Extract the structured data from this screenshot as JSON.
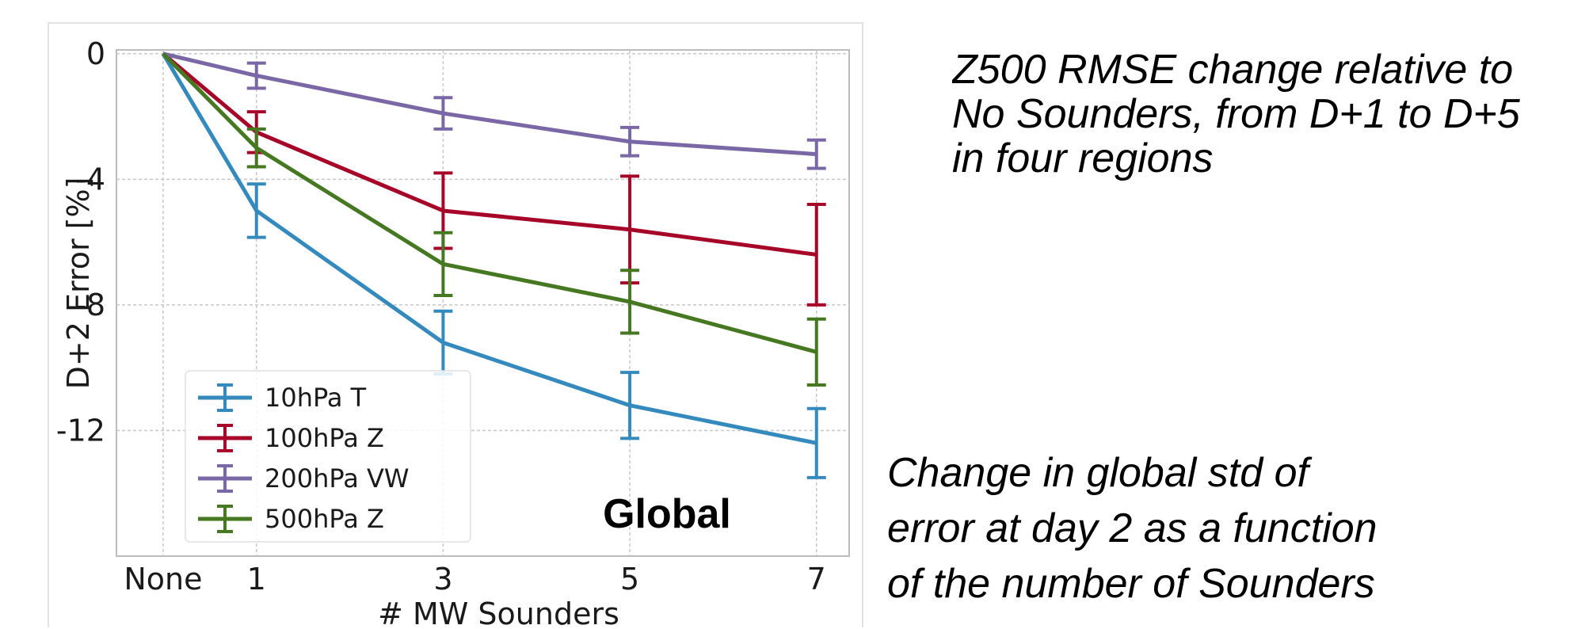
{
  "chart_data": {
    "type": "line",
    "xlabel": "# MW Sounders",
    "ylabel": "D+2 Error [%]",
    "categories": [
      "None",
      "1",
      "3",
      "5",
      "7"
    ],
    "x": [
      0,
      1,
      3,
      5,
      7
    ],
    "ylim": [
      -16,
      0
    ],
    "yticks": [
      0,
      -4,
      -8,
      -12
    ],
    "yticklabels": [
      "0",
      "-4",
      "-8",
      "-12"
    ],
    "grid": true,
    "legend_position": "lower-left",
    "annotation": "Global",
    "series": [
      {
        "name": "10hPa T",
        "color": "#348ABD",
        "values": [
          0,
          -5.0,
          -9.2,
          -11.2,
          -12.4
        ],
        "errors": [
          0,
          0.85,
          1.0,
          1.05,
          1.1
        ]
      },
      {
        "name": "100hPa Z",
        "color": "#A60628",
        "values": [
          0,
          -2.5,
          -5.0,
          -5.6,
          -6.4
        ],
        "errors": [
          0,
          0.65,
          1.2,
          1.7,
          1.6
        ]
      },
      {
        "name": "200hPa VW",
        "color": "#7A68A6",
        "values": [
          0,
          -0.7,
          -1.9,
          -2.8,
          -3.2
        ],
        "errors": [
          0,
          0.4,
          0.5,
          0.45,
          0.45
        ]
      },
      {
        "name": "500hPa Z",
        "color": "#467821",
        "values": [
          0,
          -3.0,
          -6.7,
          -7.9,
          -9.5
        ],
        "errors": [
          0,
          0.6,
          1.0,
          1.0,
          1.05
        ]
      }
    ]
  },
  "notes": {
    "top": [
      "Z500 RMSE change relative to",
      "No Sounders, from D+1 to D+5",
      "in four regions"
    ],
    "bottom": [
      "Change in global std of",
      "error at day 2 as a function",
      "of the number of Sounders"
    ]
  }
}
